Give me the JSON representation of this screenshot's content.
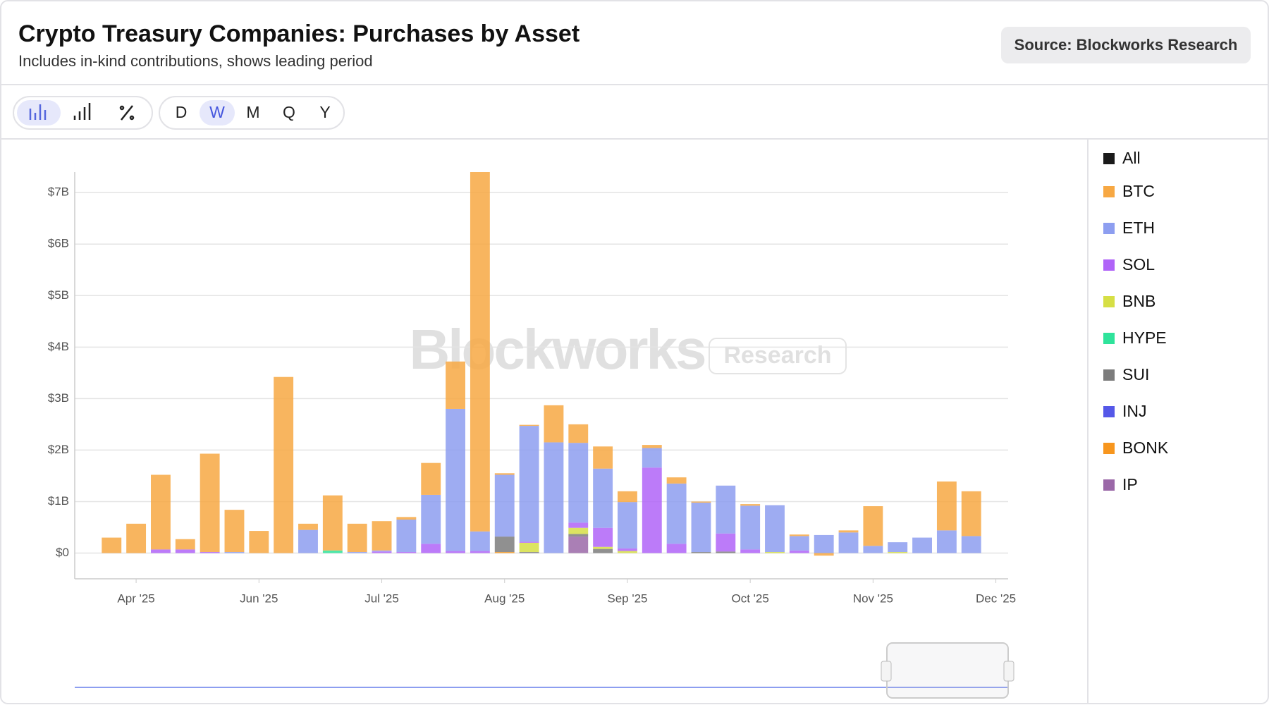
{
  "chart_data": {
    "type": "stacked-bar",
    "title": "Crypto Treasury Companies: Purchases by Asset",
    "subtitle": "Includes in-kind contributions, shows leading period",
    "source": "Source: Blockworks Research",
    "watermark": "Blockworks",
    "watermark_tag": "Research",
    "legend_all": "All",
    "legend_all_color": "#1a1a1a",
    "categories": [
      null,
      null,
      null,
      null,
      null,
      null,
      null,
      null,
      null,
      null,
      null,
      null,
      null,
      null,
      null,
      null,
      null,
      null,
      null,
      null,
      null,
      null,
      null,
      null,
      null,
      null,
      null,
      null,
      null,
      null,
      null,
      null,
      null,
      null,
      null,
      null
    ],
    "xlim": [
      -1.5,
      36.5
    ],
    "xticks": [
      {
        "value": 1,
        "label": "Apr '25"
      },
      {
        "value": 6,
        "label": "Jun '25"
      },
      {
        "value": 11,
        "label": "Jul '25"
      },
      {
        "value": 16,
        "label": "Aug '25"
      },
      {
        "value": 21,
        "label": "Sep '25"
      },
      {
        "value": 26,
        "label": "Oct '25"
      },
      {
        "value": 31,
        "label": "Nov '25"
      },
      {
        "value": 36,
        "label": "Dec '25"
      }
    ],
    "ylim": [
      -0.5,
      7.4
    ],
    "yticks": [
      {
        "value": 0,
        "label": "$0"
      },
      {
        "value": 1,
        "label": "$1B"
      },
      {
        "value": 2,
        "label": "$2B"
      },
      {
        "value": 3,
        "label": "$3B"
      },
      {
        "value": 4,
        "label": "$4B"
      },
      {
        "value": 5,
        "label": "$5B"
      },
      {
        "value": 6,
        "label": "$6B"
      },
      {
        "value": 7,
        "label": "$7B"
      }
    ],
    "grid": true,
    "series": [
      {
        "name": "BTC",
        "color": "#f7a843",
        "values": [
          0.3,
          0.57,
          1.45,
          0.2,
          1.91,
          0.82,
          0.43,
          3.42,
          0.12,
          1.07,
          0.55,
          0.57,
          0.05,
          0.62,
          0.92,
          6.98,
          0.03,
          0.02,
          0.72,
          0.36,
          0.43,
          0.21,
          0.06,
          0.12,
          0.02,
          0,
          0.03,
          0,
          0.03,
          -0.05,
          0.04,
          0.77,
          0,
          0,
          0.95,
          0.87
        ]
      },
      {
        "name": "ETH",
        "color": "#8d9ef0",
        "values": [
          0,
          0,
          0,
          0,
          0,
          0.02,
          0,
          0,
          0.45,
          0,
          0.02,
          0.02,
          0.63,
          0.95,
          2.76,
          0.38,
          1.2,
          2.25,
          2.15,
          1.55,
          1.15,
          0.9,
          0.38,
          1.17,
          0.96,
          0.93,
          0.85,
          0.91,
          0.28,
          0.35,
          0.4,
          0.14,
          0.19,
          0.3,
          0.44,
          0.33
        ]
      },
      {
        "name": "SOL",
        "color": "#b064f8",
        "values": [
          0,
          0,
          0.07,
          0.07,
          0.02,
          0,
          0,
          0,
          0,
          0,
          0,
          0.03,
          0.02,
          0.18,
          0.04,
          0.04,
          0,
          0.02,
          0,
          0.1,
          0.37,
          0.05,
          1.66,
          0.18,
          0,
          0.35,
          0.07,
          0,
          0.05,
          0,
          0,
          0,
          0,
          0,
          0,
          0
        ]
      },
      {
        "name": "BNB",
        "color": "#d6df45",
        "values": [
          0,
          0,
          0,
          0,
          0,
          0,
          0,
          0,
          0,
          0,
          0,
          0,
          0,
          0,
          0,
          0,
          0,
          0.18,
          0,
          0.12,
          0.04,
          0.04,
          0,
          0,
          0,
          0,
          0,
          0.02,
          0,
          0,
          0,
          0,
          0.02,
          0,
          0,
          0
        ]
      },
      {
        "name": "HYPE",
        "color": "#2fe39b",
        "values": [
          0,
          0,
          0,
          0,
          0,
          0,
          0,
          0,
          0,
          0.05,
          0,
          0,
          0,
          0,
          0,
          0,
          0,
          0,
          0,
          0,
          0,
          0,
          0,
          0,
          0,
          0,
          0,
          0,
          0,
          0,
          0,
          0,
          0,
          0,
          0,
          0
        ]
      },
      {
        "name": "SUI",
        "color": "#7c7c7c",
        "values": [
          0,
          0,
          0,
          0,
          0,
          0,
          0,
          0,
          0,
          0,
          0,
          0,
          0,
          0,
          0,
          0,
          0.3,
          0.02,
          0,
          0.05,
          0.08,
          0,
          0,
          0,
          0.02,
          0.03,
          0,
          0,
          0,
          0,
          0,
          0,
          0,
          0,
          0,
          0
        ]
      },
      {
        "name": "INJ",
        "color": "#5558e8",
        "values": [
          0,
          0,
          0,
          0,
          0,
          0,
          0,
          0,
          0,
          0,
          0,
          0,
          0,
          0,
          0,
          0,
          0,
          0,
          0,
          0,
          0,
          0,
          0,
          0,
          0,
          0,
          0,
          0,
          0,
          0,
          0,
          0,
          0,
          0,
          0,
          0
        ]
      },
      {
        "name": "BONK",
        "color": "#f7961e",
        "values": [
          0,
          0,
          0,
          0,
          0,
          0,
          0,
          0,
          0,
          0,
          0,
          0,
          0,
          0,
          0,
          0,
          0.02,
          0,
          0,
          0,
          0,
          0,
          0,
          0,
          0,
          0,
          0,
          0,
          0,
          0,
          0,
          0,
          0,
          0,
          0,
          0
        ]
      },
      {
        "name": "IP",
        "color": "#9b68a8",
        "values": [
          0,
          0,
          0,
          0,
          0,
          0,
          0,
          0,
          0,
          0,
          0,
          0,
          0,
          0,
          0,
          0,
          0,
          0,
          0,
          0.32,
          0,
          0,
          0,
          0,
          0,
          0,
          0,
          0,
          0,
          0,
          0,
          0,
          0,
          0,
          0,
          0
        ]
      }
    ]
  },
  "toolbar": {
    "periods": [
      "D",
      "W",
      "M",
      "Q",
      "Y"
    ]
  }
}
